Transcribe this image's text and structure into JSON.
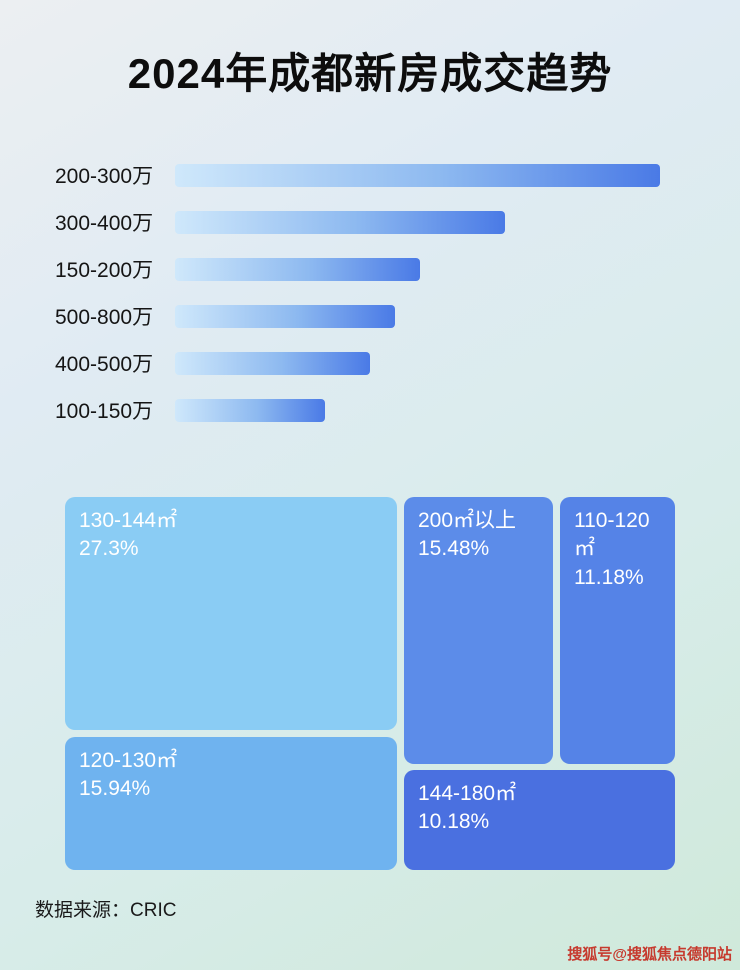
{
  "page": {
    "title": "2024年成都新房成交趋势"
  },
  "chart_data": [
    {
      "type": "bar",
      "title": "2024年成都新房成交趋势",
      "orientation": "horizontal",
      "categories": [
        "200-300万",
        "300-400万",
        "150-200万",
        "500-800万",
        "400-500万",
        "100-150万"
      ],
      "values": [
        97,
        66,
        49,
        44,
        39,
        30
      ],
      "value_note": "relative bar lengths in % of track; no numeric axis shown in image",
      "xlabel": "",
      "ylabel": "",
      "grid": false,
      "legend": false,
      "bar_css_gradient": "linear-gradient(90deg, #cfe8fb 0%, #8db9f0 55%, #4a7ae6 100%)"
    },
    {
      "type": "treemap",
      "items": [
        {
          "label": "130-144㎡",
          "value": "27.3%",
          "color": "#8accf4"
        },
        {
          "label": "120-130㎡",
          "value": "15.94%",
          "color": "#6fb3ef"
        },
        {
          "label": "200㎡以上",
          "value": "15.48%",
          "color": "#5c8ce9"
        },
        {
          "label": "110-120㎡",
          "value": "11.18%",
          "color": "#5583e7"
        },
        {
          "label": "144-180㎡",
          "value": "10.18%",
          "color": "#4a70e0"
        }
      ]
    }
  ],
  "footer": {
    "source_label": "数据来源：CRIC"
  },
  "watermark": {
    "text": "搜狐号@搜狐焦点德阳站",
    "color": "#c63a2e"
  }
}
